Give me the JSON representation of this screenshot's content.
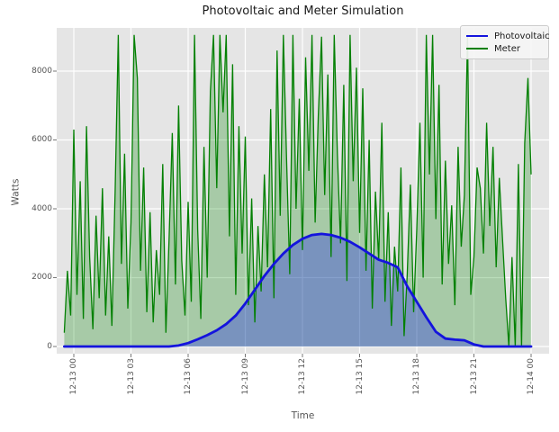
{
  "title": "Photovoltaic and Meter Simulation",
  "axes": {
    "xlabel": "Time",
    "ylabel": "Watts",
    "x_ticks": [
      {
        "label": "12-13 00",
        "hour": 0
      },
      {
        "label": "12-13 03",
        "hour": 3
      },
      {
        "label": "12-13 06",
        "hour": 6
      },
      {
        "label": "12-13 09",
        "hour": 9
      },
      {
        "label": "12-13 12",
        "hour": 12
      },
      {
        "label": "12-13 15",
        "hour": 15
      },
      {
        "label": "12-13 18",
        "hour": 18
      },
      {
        "label": "12-13 21",
        "hour": 21
      },
      {
        "label": "12-14 00",
        "hour": 24
      }
    ],
    "y_ticks": [
      {
        "label": "0",
        "watts": 0
      },
      {
        "label": "2000",
        "watts": 2000
      },
      {
        "label": "4000",
        "watts": 4000
      },
      {
        "label": "6000",
        "watts": 6000
      },
      {
        "label": "8000",
        "watts": 8000
      }
    ]
  },
  "legend": {
    "position": "upper right",
    "items": [
      {
        "label": "Photovoltaic",
        "color": "#1414dd"
      },
      {
        "label": "Meter",
        "color": "#038003"
      }
    ]
  },
  "colors": {
    "figure_bg": "#ffffff",
    "plot_bg": "#e5e5e5",
    "grid": "#ffffff",
    "tick_label": "#555555",
    "title_text": "#1a1a1a",
    "pv_line": "#1414dd",
    "pv_fill": "rgba(0,0,255,0.27)",
    "meter_line": "#038003",
    "meter_fill": "rgba(0,128,0,0.27)"
  },
  "chart_data": {
    "type": "line",
    "title": "Photovoltaic and Meter Simulation",
    "xlabel": "Time",
    "ylabel": "Watts",
    "x_unit": "hours relative to 12-13 00:00",
    "xlim": [
      -0.9,
      24.95
    ],
    "ylim": [
      -450,
      9500
    ],
    "grid": true,
    "legend_position": "upper right",
    "series": [
      {
        "name": "Photovoltaic",
        "style": "smooth bell curve, thick blue line with translucent blue area fill to 0",
        "hours": [
          -0.5,
          0,
          0.5,
          1,
          1.5,
          2,
          2.5,
          3,
          3.5,
          4,
          4.5,
          5,
          5.5,
          6,
          6.5,
          7,
          7.5,
          8,
          8.5,
          9,
          9.5,
          10,
          10.5,
          11,
          11.5,
          12,
          12.5,
          13,
          13.5,
          14,
          14.5,
          15,
          15.5,
          16,
          16.5,
          17,
          17.5,
          18,
          18.5,
          19,
          19.5,
          20,
          20.5,
          21,
          21.5,
          22,
          22.5,
          23,
          23.5,
          24
        ],
        "values": [
          0,
          0,
          0,
          0,
          0,
          0,
          0,
          0,
          0,
          0,
          0,
          0,
          30,
          100,
          210,
          330,
          470,
          650,
          900,
          1250,
          1650,
          2050,
          2400,
          2700,
          2950,
          3130,
          3240,
          3270,
          3240,
          3160,
          3040,
          2880,
          2700,
          2520,
          2430,
          2300,
          1750,
          1300,
          850,
          430,
          230,
          200,
          180,
          60,
          0,
          0,
          0,
          0,
          0,
          0
        ]
      },
      {
        "name": "Meter",
        "style": "very noisy green line with translucent green area fill to 0",
        "start_hour": -0.5,
        "step_minutes": 10,
        "values": [
          400,
          2200,
          900,
          6300,
          1500,
          4800,
          800,
          6400,
          2600,
          500,
          3800,
          1400,
          4600,
          900,
          3200,
          600,
          4500,
          9050,
          2400,
          5600,
          1100,
          3600,
          9050,
          7800,
          2200,
          5200,
          1000,
          3900,
          700,
          2800,
          1500,
          5300,
          400,
          3100,
          6200,
          1800,
          7000,
          2500,
          900,
          4200,
          1300,
          9050,
          3400,
          800,
          5800,
          2000,
          7400,
          9050,
          4600,
          9050,
          6800,
          9050,
          3200,
          8200,
          1500,
          6400,
          2700,
          6100,
          1200,
          4300,
          700,
          3500,
          1600,
          5000,
          2300,
          6900,
          1400,
          8600,
          3800,
          9050,
          5400,
          2100,
          9050,
          4000,
          7200,
          2800,
          8400,
          5100,
          9050,
          3600,
          6700,
          9000,
          4400,
          7900,
          2600,
          9050,
          5600,
          3000,
          7600,
          1900,
          9050,
          4800,
          8100,
          3300,
          7500,
          2200,
          6000,
          1100,
          4500,
          2500,
          6500,
          1300,
          3900,
          600,
          2900,
          1600,
          5200,
          300,
          2100,
          4700,
          1000,
          3400,
          6500,
          2000,
          9050,
          5000,
          9050,
          3700,
          7600,
          1800,
          5400,
          2400,
          4100,
          1200,
          5800,
          2900,
          4400,
          9050,
          1500,
          2600,
          5200,
          4600,
          2700,
          6500,
          3500,
          5800,
          2300,
          4900,
          3100,
          1400,
          0,
          2600,
          0,
          5300,
          0,
          5900,
          7800,
          5000
        ]
      }
    ]
  }
}
